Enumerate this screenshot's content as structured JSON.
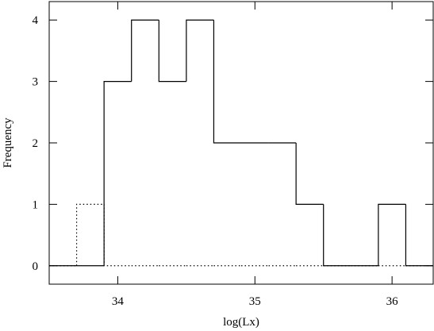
{
  "chart_data": {
    "type": "histogram",
    "xlabel": "log(Lx)",
    "ylabel": "Frequency",
    "bins": [
      33.5,
      33.7,
      33.9,
      34.1,
      34.3,
      34.5,
      34.7,
      34.9,
      35.1,
      35.3,
      35.5,
      35.7,
      35.9,
      36.1,
      36.3
    ],
    "series": [
      {
        "color": "#000000",
        "style": "solid",
        "values": [
          0,
          0,
          3,
          4,
          3,
          4,
          2,
          2,
          2,
          1,
          0,
          0,
          1,
          0
        ]
      },
      {
        "color": "#000000",
        "style": "dotted",
        "values": [
          0,
          1,
          0,
          0,
          0,
          0,
          0,
          0,
          0,
          0,
          0,
          0,
          0,
          0
        ]
      }
    ],
    "xlim": [
      33.5,
      36.3
    ],
    "ylim": [
      -0.3,
      4.3
    ],
    "xticks": [
      34,
      35,
      36
    ],
    "yticks": [
      0,
      1,
      2,
      3,
      4
    ]
  }
}
